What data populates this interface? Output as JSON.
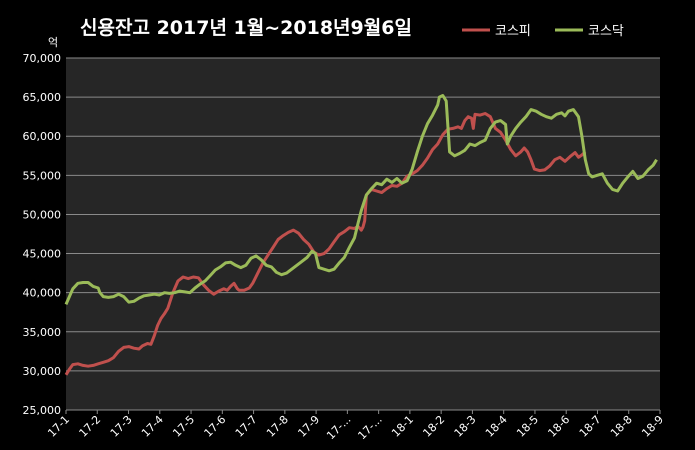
{
  "chart_data": {
    "type": "line",
    "title": "신용잔고 2017년 1월~2018년9월6일",
    "ylabel": "억",
    "xlabel": "",
    "ylim": [
      25000,
      70000
    ],
    "yticks": [
      "70,000",
      "65,000",
      "60,000",
      "55,000",
      "50,000",
      "45,000",
      "40,000",
      "35,000",
      "30,000",
      "25,000"
    ],
    "categories": [
      "17-1",
      "17-2",
      "17-3",
      "17-4",
      "17-5",
      "17-6",
      "17-7",
      "17-8",
      "17-9",
      "17-...",
      "17-...",
      "18-1",
      "18-2",
      "18-3",
      "18-4",
      "18-5",
      "18-6",
      "18-7",
      "18-8",
      "18-9"
    ],
    "grid": true,
    "legend_position": "top-right",
    "series": [
      {
        "name": "코스피",
        "color": "#c0504d",
        "values": [
          [
            0,
            29500
          ],
          [
            0.2,
            30200
          ],
          [
            0.4,
            30800
          ],
          [
            0.7,
            30900
          ],
          [
            1.0,
            30700
          ],
          [
            1.3,
            30600
          ],
          [
            1.6,
            30700
          ],
          [
            1.9,
            30900
          ],
          [
            2.2,
            31100
          ],
          [
            2.5,
            31300
          ],
          [
            2.8,
            31700
          ],
          [
            3.1,
            32500
          ],
          [
            3.4,
            33000
          ],
          [
            3.7,
            33100
          ],
          [
            4.0,
            32900
          ],
          [
            4.3,
            32800
          ],
          [
            4.5,
            33200
          ],
          [
            4.8,
            33500
          ],
          [
            5.0,
            33400
          ],
          [
            5.2,
            34500
          ],
          [
            5.4,
            35800
          ],
          [
            5.6,
            36700
          ],
          [
            5.8,
            37300
          ],
          [
            6.0,
            38000
          ],
          [
            6.3,
            40000
          ],
          [
            6.6,
            41500
          ],
          [
            6.9,
            42000
          ],
          [
            7.2,
            41800
          ],
          [
            7.5,
            42000
          ],
          [
            7.8,
            41900
          ],
          [
            8.1,
            41000
          ],
          [
            8.4,
            40300
          ],
          [
            8.7,
            39800
          ],
          [
            9.0,
            40200
          ],
          [
            9.3,
            40500
          ],
          [
            9.5,
            40300
          ],
          [
            9.7,
            40800
          ],
          [
            9.9,
            41200
          ],
          [
            10.1,
            40500
          ],
          [
            10.2,
            40300
          ],
          [
            10.5,
            40300
          ],
          [
            10.8,
            40600
          ],
          [
            11.0,
            41200
          ],
          [
            11.3,
            42500
          ],
          [
            11.6,
            43800
          ],
          [
            11.9,
            44800
          ],
          [
            12.2,
            45800
          ],
          [
            12.5,
            46800
          ],
          [
            12.8,
            47300
          ],
          [
            13.1,
            47700
          ],
          [
            13.4,
            48000
          ],
          [
            13.7,
            47600
          ],
          [
            14.0,
            46800
          ],
          [
            14.3,
            46200
          ],
          [
            14.6,
            45200
          ],
          [
            14.9,
            44800
          ],
          [
            15.2,
            45000
          ],
          [
            15.5,
            45600
          ],
          [
            15.8,
            46500
          ],
          [
            16.1,
            47400
          ],
          [
            16.4,
            47800
          ],
          [
            16.7,
            48300
          ],
          [
            17.0,
            48200
          ],
          [
            17.2,
            48500
          ],
          [
            17.4,
            48000
          ],
          [
            17.5,
            48400
          ],
          [
            17.6,
            49200
          ],
          [
            17.7,
            52500
          ],
          [
            18.0,
            53200
          ],
          [
            18.3,
            53000
          ],
          [
            18.6,
            52800
          ],
          [
            18.9,
            53300
          ],
          [
            19.2,
            53700
          ],
          [
            19.5,
            53600
          ],
          [
            19.8,
            54000
          ],
          [
            20.1,
            54900
          ],
          [
            20.4,
            55200
          ],
          [
            20.7,
            55600
          ],
          [
            21.0,
            56300
          ],
          [
            21.3,
            57200
          ],
          [
            21.6,
            58300
          ],
          [
            21.9,
            59000
          ],
          [
            22.2,
            60200
          ],
          [
            22.5,
            60900
          ],
          [
            22.8,
            61000
          ],
          [
            23.1,
            61200
          ],
          [
            23.3,
            61000
          ],
          [
            23.5,
            62000
          ],
          [
            23.7,
            62500
          ],
          [
            23.9,
            62300
          ],
          [
            24.0,
            61000
          ],
          [
            24.1,
            62800
          ],
          [
            24.4,
            62700
          ],
          [
            24.7,
            62900
          ],
          [
            25.0,
            62500
          ],
          [
            25.3,
            61000
          ],
          [
            25.6,
            60500
          ],
          [
            25.9,
            59500
          ],
          [
            26.2,
            58300
          ],
          [
            26.5,
            57500
          ],
          [
            26.8,
            58000
          ],
          [
            27.0,
            58500
          ],
          [
            27.2,
            58000
          ],
          [
            27.4,
            57000
          ],
          [
            27.6,
            55800
          ],
          [
            27.9,
            55600
          ],
          [
            28.2,
            55700
          ],
          [
            28.5,
            56200
          ],
          [
            28.8,
            57000
          ],
          [
            29.1,
            57300
          ],
          [
            29.4,
            56800
          ],
          [
            29.7,
            57400
          ],
          [
            30.0,
            57900
          ],
          [
            30.2,
            57300
          ],
          [
            30.4,
            57600
          ],
          [
            30.6,
            58000
          ]
        ]
      },
      {
        "name": "코스닥",
        "color": "#9bbb59",
        "values": [
          [
            0,
            38500
          ],
          [
            0.2,
            39500
          ],
          [
            0.4,
            40500
          ],
          [
            0.7,
            41200
          ],
          [
            1.0,
            41300
          ],
          [
            1.3,
            41300
          ],
          [
            1.6,
            40800
          ],
          [
            1.9,
            40600
          ],
          [
            2.0,
            40000
          ],
          [
            2.2,
            39500
          ],
          [
            2.5,
            39400
          ],
          [
            2.8,
            39500
          ],
          [
            3.1,
            39800
          ],
          [
            3.4,
            39500
          ],
          [
            3.7,
            38800
          ],
          [
            4.0,
            38900
          ],
          [
            4.3,
            39300
          ],
          [
            4.6,
            39600
          ],
          [
            4.9,
            39700
          ],
          [
            5.2,
            39800
          ],
          [
            5.5,
            39700
          ],
          [
            5.8,
            40000
          ],
          [
            6.1,
            39900
          ],
          [
            6.4,
            40000
          ],
          [
            6.7,
            40200
          ],
          [
            7.0,
            40100
          ],
          [
            7.3,
            40000
          ],
          [
            7.6,
            40600
          ],
          [
            7.9,
            41100
          ],
          [
            8.2,
            41500
          ],
          [
            8.5,
            42200
          ],
          [
            8.8,
            42900
          ],
          [
            9.1,
            43300
          ],
          [
            9.4,
            43800
          ],
          [
            9.7,
            43900
          ],
          [
            10.0,
            43500
          ],
          [
            10.3,
            43200
          ],
          [
            10.6,
            43500
          ],
          [
            10.9,
            44400
          ],
          [
            11.2,
            44700
          ],
          [
            11.5,
            44200
          ],
          [
            11.8,
            43500
          ],
          [
            12.1,
            43300
          ],
          [
            12.4,
            42600
          ],
          [
            12.7,
            42300
          ],
          [
            13.0,
            42500
          ],
          [
            13.3,
            43000
          ],
          [
            13.6,
            43500
          ],
          [
            13.9,
            44000
          ],
          [
            14.2,
            44500
          ],
          [
            14.5,
            45300
          ],
          [
            14.7,
            45000
          ],
          [
            14.9,
            43200
          ],
          [
            15.2,
            43000
          ],
          [
            15.5,
            42800
          ],
          [
            15.8,
            43000
          ],
          [
            16.1,
            43800
          ],
          [
            16.4,
            44500
          ],
          [
            16.7,
            45800
          ],
          [
            17.0,
            47000
          ],
          [
            17.2,
            48800
          ],
          [
            17.4,
            50500
          ],
          [
            17.7,
            52500
          ],
          [
            18.0,
            53300
          ],
          [
            18.3,
            54000
          ],
          [
            18.6,
            53800
          ],
          [
            18.9,
            54500
          ],
          [
            19.2,
            54100
          ],
          [
            19.5,
            54600
          ],
          [
            19.8,
            54000
          ],
          [
            20.1,
            54300
          ],
          [
            20.4,
            55800
          ],
          [
            20.7,
            58000
          ],
          [
            21.0,
            60000
          ],
          [
            21.3,
            61600
          ],
          [
            21.6,
            62700
          ],
          [
            21.9,
            64000
          ],
          [
            22.0,
            65000
          ],
          [
            22.2,
            65200
          ],
          [
            22.4,
            64500
          ],
          [
            22.6,
            58000
          ],
          [
            22.9,
            57500
          ],
          [
            23.2,
            57800
          ],
          [
            23.5,
            58200
          ],
          [
            23.8,
            59000
          ],
          [
            24.1,
            58800
          ],
          [
            24.4,
            59200
          ],
          [
            24.7,
            59500
          ],
          [
            25.0,
            61000
          ],
          [
            25.3,
            61800
          ],
          [
            25.6,
            62000
          ],
          [
            25.9,
            61500
          ],
          [
            26.0,
            59000
          ],
          [
            26.2,
            60000
          ],
          [
            26.5,
            61000
          ],
          [
            26.8,
            61800
          ],
          [
            27.1,
            62500
          ],
          [
            27.4,
            63400
          ],
          [
            27.7,
            63200
          ],
          [
            28.0,
            62800
          ],
          [
            28.3,
            62500
          ],
          [
            28.6,
            62300
          ],
          [
            28.9,
            62800
          ],
          [
            29.2,
            63000
          ],
          [
            29.4,
            62600
          ],
          [
            29.6,
            63200
          ],
          [
            29.9,
            63400
          ],
          [
            30.2,
            62500
          ],
          [
            30.4,
            60000
          ],
          [
            30.6,
            57000
          ],
          [
            30.8,
            55200
          ],
          [
            31.0,
            54800
          ],
          [
            31.3,
            55000
          ],
          [
            31.6,
            55200
          ],
          [
            31.9,
            54000
          ],
          [
            32.2,
            53200
          ],
          [
            32.5,
            53000
          ],
          [
            32.8,
            54000
          ],
          [
            33.1,
            54800
          ],
          [
            33.4,
            55500
          ],
          [
            33.7,
            54600
          ],
          [
            34.0,
            54900
          ],
          [
            34.3,
            55700
          ],
          [
            34.6,
            56300
          ],
          [
            34.8,
            57000
          ]
        ]
      }
    ]
  }
}
